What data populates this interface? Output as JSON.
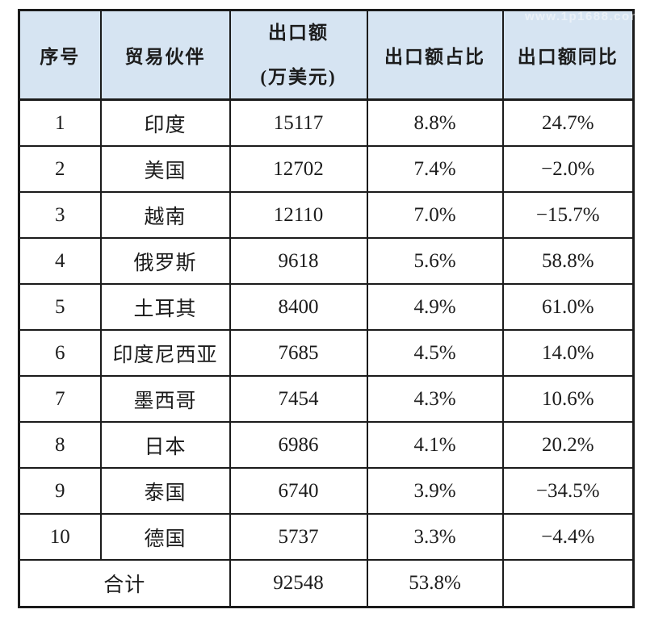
{
  "watermark": "www.1p1688.com",
  "colors": {
    "header_bg": "#d6e4f2",
    "border": "#1b1b1b",
    "text": "#1c1c1c",
    "row_bg": "#ffffff"
  },
  "table": {
    "headers": {
      "col1": "序号",
      "col2": "贸易伙伴",
      "col3_line1": "出口额",
      "col3_line2": "(万美元)",
      "col4": "出口额占比",
      "col5": "出口额同比"
    },
    "rows": [
      {
        "no": "1",
        "partner": "印度",
        "export": "15117",
        "share": "8.8%",
        "yoy": "24.7%"
      },
      {
        "no": "2",
        "partner": "美国",
        "export": "12702",
        "share": "7.4%",
        "yoy": "−2.0%"
      },
      {
        "no": "3",
        "partner": "越南",
        "export": "12110",
        "share": "7.0%",
        "yoy": "−15.7%"
      },
      {
        "no": "4",
        "partner": "俄罗斯",
        "export": "9618",
        "share": "5.6%",
        "yoy": "58.8%"
      },
      {
        "no": "5",
        "partner": "土耳其",
        "export": "8400",
        "share": "4.9%",
        "yoy": "61.0%"
      },
      {
        "no": "6",
        "partner": "印度尼西亚",
        "export": "7685",
        "share": "4.5%",
        "yoy": "14.0%"
      },
      {
        "no": "7",
        "partner": "墨西哥",
        "export": "7454",
        "share": "4.3%",
        "yoy": "10.6%"
      },
      {
        "no": "8",
        "partner": "日本",
        "export": "6986",
        "share": "4.1%",
        "yoy": "20.2%"
      },
      {
        "no": "9",
        "partner": "泰国",
        "export": "6740",
        "share": "3.9%",
        "yoy": "−34.5%"
      },
      {
        "no": "10",
        "partner": "德国",
        "export": "5737",
        "share": "3.3%",
        "yoy": "−4.4%"
      }
    ],
    "total": {
      "label": "合计",
      "export": "92548",
      "share": "53.8%",
      "yoy": ""
    }
  },
  "chart_data": {
    "type": "table",
    "columns": [
      "序号",
      "贸易伙伴",
      "出口额(万美元)",
      "出口额占比",
      "出口额同比"
    ],
    "rows": [
      [
        1,
        "印度",
        15117,
        "8.8%",
        "24.7%"
      ],
      [
        2,
        "美国",
        12702,
        "7.4%",
        "-2.0%"
      ],
      [
        3,
        "越南",
        12110,
        "7.0%",
        "-15.7%"
      ],
      [
        4,
        "俄罗斯",
        9618,
        "5.6%",
        "58.8%"
      ],
      [
        5,
        "土耳其",
        8400,
        "4.9%",
        "61.0%"
      ],
      [
        6,
        "印度尼西亚",
        7685,
        "4.5%",
        "14.0%"
      ],
      [
        7,
        "墨西哥",
        7454,
        "4.3%",
        "10.6%"
      ],
      [
        8,
        "日本",
        6986,
        "4.1%",
        "20.2%"
      ],
      [
        9,
        "泰国",
        6740,
        "3.9%",
        "-34.5%"
      ],
      [
        10,
        "德国",
        5737,
        "3.3%",
        "-4.4%"
      ]
    ],
    "total_row": [
      "合计",
      92548,
      "53.8%",
      ""
    ],
    "title": "",
    "layout": {
      "header_fill": "#d6e4f2",
      "grid": "all-borders",
      "header_bold": true
    }
  }
}
